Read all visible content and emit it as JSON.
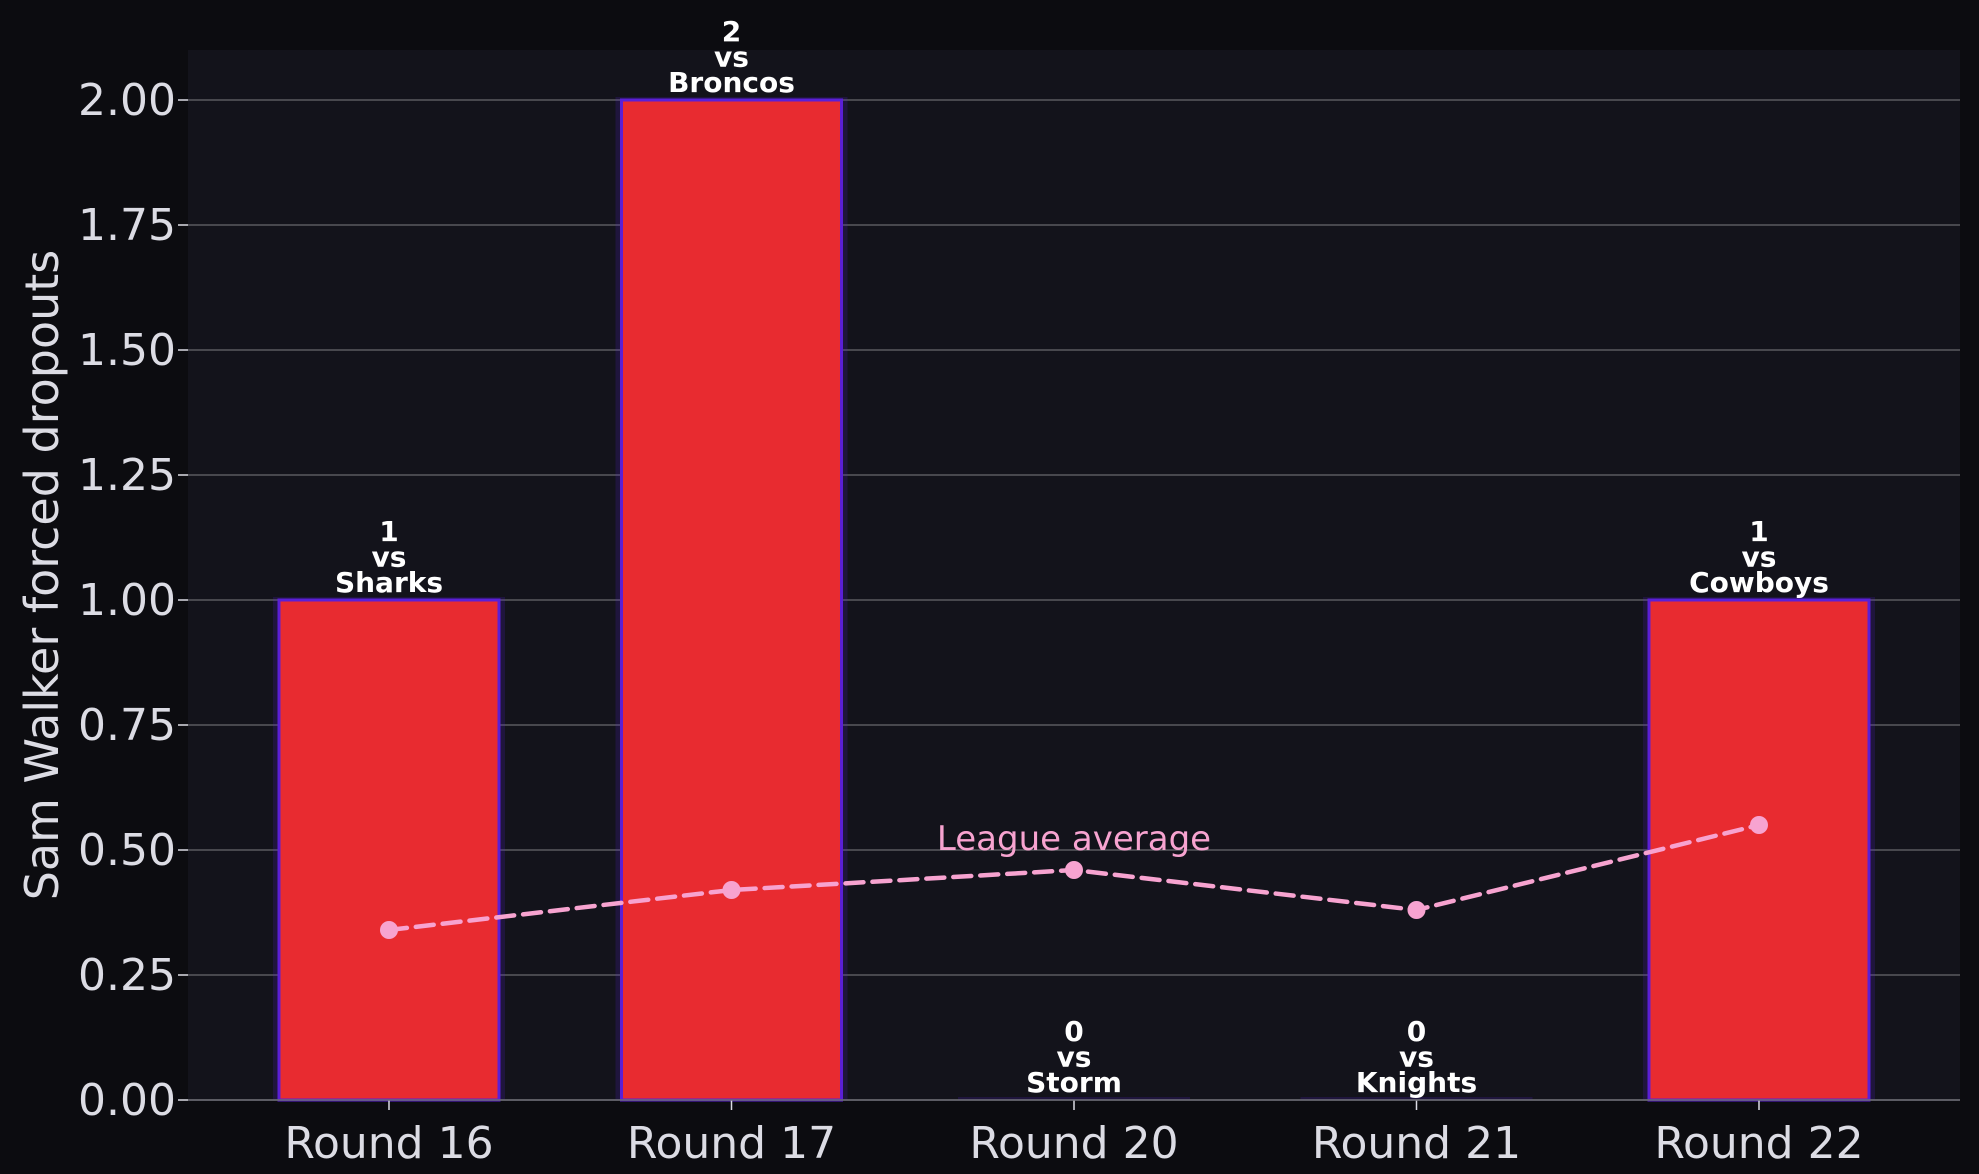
{
  "chart_data": {
    "type": "bar",
    "categories": [
      "Round 16",
      "Round 17",
      "Round 20",
      "Round 21",
      "Round 22"
    ],
    "values": [
      1,
      2,
      0,
      0,
      1
    ],
    "opponents": [
      "Sharks",
      "Broncos",
      "Storm",
      "Knights",
      "Cowboys"
    ],
    "bar_label_join": "vs",
    "ylabel": "Sam Walker forced dropouts",
    "xlabel": "",
    "ylim": [
      0,
      2.1
    ],
    "yticks": [
      0,
      0.25,
      0.5,
      0.75,
      1.0,
      1.25,
      1.5,
      1.75,
      2.0
    ],
    "ytick_labels": [
      "0.00",
      "0.25",
      "0.50",
      "0.75",
      "1.00",
      "1.25",
      "1.50",
      "1.75",
      "2.00"
    ],
    "grid": true,
    "series": [
      {
        "name": "Sam Walker forced dropouts",
        "type": "bar",
        "values": [
          1,
          2,
          0,
          0,
          1
        ]
      },
      {
        "name": "League average",
        "type": "line",
        "style": "dashed",
        "values": [
          0.34,
          0.42,
          0.46,
          0.38,
          0.55
        ]
      }
    ],
    "annotation": {
      "text": "League average",
      "category_index": 2
    },
    "colors": {
      "figure_bg": "#0c0c10",
      "plot_bg": "#13131b",
      "bar_fill": "#e82b30",
      "bar_edge": "#5b1fd6",
      "line": "#f7a3d0",
      "grid": "#5a5a60",
      "text": "#dcdce4"
    }
  }
}
